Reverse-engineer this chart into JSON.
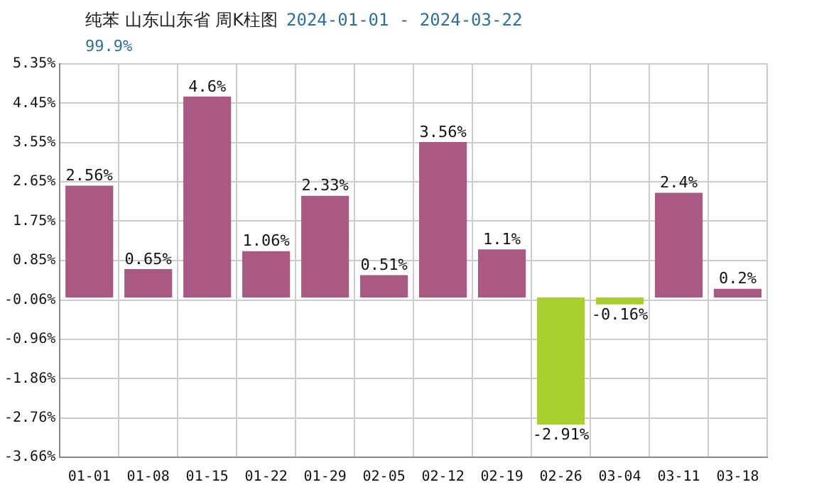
{
  "chart_data": {
    "type": "bar",
    "title": "纯苯 山东山东省 周K柱图",
    "subtitle": "2024-01-01 - 2024-03-22",
    "annotations": [
      "99.9%"
    ],
    "categories": [
      "01-01",
      "01-08",
      "01-15",
      "01-22",
      "01-29",
      "02-05",
      "02-12",
      "02-19",
      "02-26",
      "03-04",
      "03-11",
      "03-18"
    ],
    "values": [
      2.56,
      0.65,
      4.6,
      1.06,
      2.33,
      0.51,
      3.56,
      1.1,
      -2.91,
      -0.16,
      2.4,
      0.2
    ],
    "colors": [
      "#aa5a82",
      "#aa5a82",
      "#aa5a82",
      "#aa5a82",
      "#aa5a82",
      "#aa5a82",
      "#aa5a82",
      "#aa5a82",
      "#a8d02e",
      "#a8d02e",
      "#aa5a82",
      "#aa5a82"
    ],
    "value_labels": [
      "2.56%",
      "0.65%",
      "4.6%",
      "1.06%",
      "2.33%",
      "0.51%",
      "3.56%",
      "1.1%",
      "-2.91%",
      "-0.16%",
      "2.4%",
      "0.2%"
    ],
    "ylim": [
      -3.66,
      5.35
    ],
    "yticks": [
      {
        "value": -3.66,
        "label": "-3.66%"
      },
      {
        "value": -2.76,
        "label": "-2.76%"
      },
      {
        "value": -1.86,
        "label": "-1.86%"
      },
      {
        "value": -0.96,
        "label": "-0.96%"
      },
      {
        "value": -0.06,
        "label": "-0.06%"
      },
      {
        "value": 0.85,
        "label": "0.85%"
      },
      {
        "value": 1.75,
        "label": "1.75%"
      },
      {
        "value": 2.65,
        "label": "2.65%"
      },
      {
        "value": 3.55,
        "label": "3.55%"
      },
      {
        "value": 4.45,
        "label": "4.45%"
      },
      {
        "value": 5.35,
        "label": "5.35%"
      }
    ],
    "grid": true,
    "legend": false
  }
}
